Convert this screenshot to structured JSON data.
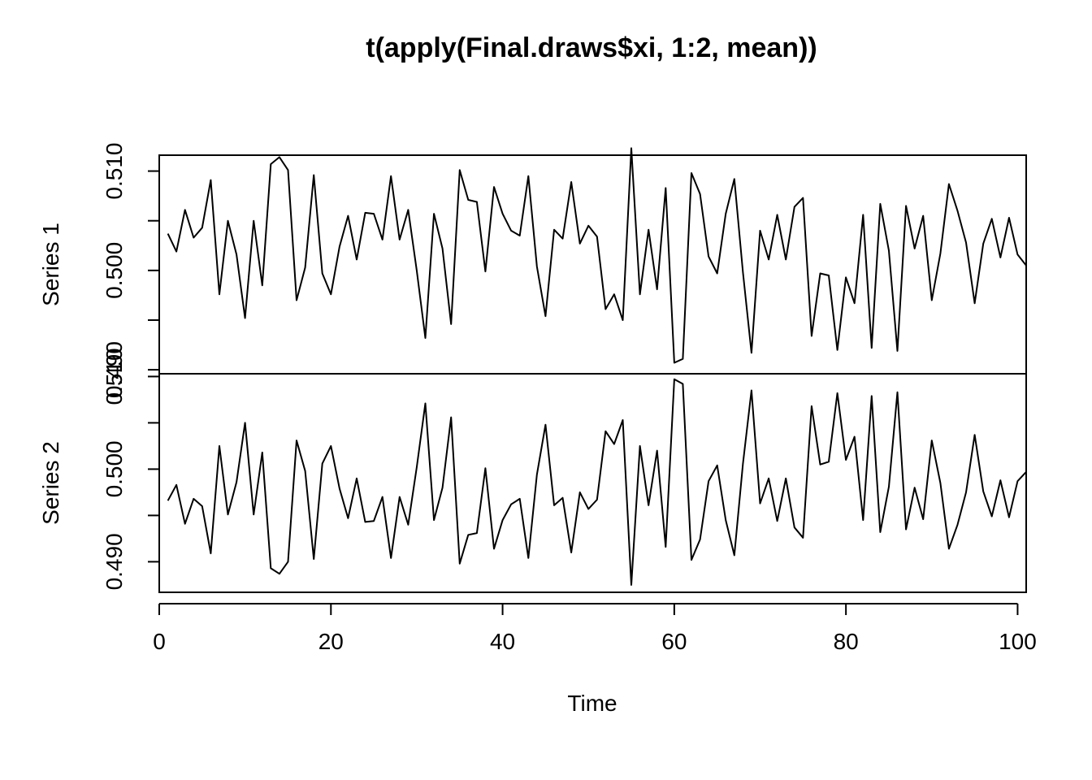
{
  "chart_data": {
    "type": "line",
    "title": "t(apply(Final.draws$xi, 1:2, mean))",
    "xlabel": "Time",
    "x_start": 1,
    "xlim": [
      0,
      101
    ],
    "x_ticks": [
      0,
      20,
      40,
      60,
      80,
      100
    ],
    "x_tick_labels": [
      "0",
      "20",
      "40",
      "60",
      "80",
      "100"
    ],
    "panels": [
      {
        "ylabel": "Series 1",
        "ylim": [
          0.4896,
          0.5116
        ],
        "y_ticks": [
          0.49,
          0.495,
          0.5,
          0.505,
          0.51
        ],
        "y_tick_labels": [
          "0.490",
          "0.500",
          "0.510"
        ],
        "y_tick_label_values": [
          0.49,
          0.5,
          0.51
        ],
        "values": [
          0.5037,
          0.5019,
          0.5061,
          0.5033,
          0.5043,
          0.5091,
          0.4976,
          0.505,
          0.5016,
          0.4952,
          0.505,
          0.4985,
          0.5107,
          0.5114,
          0.5101,
          0.497,
          0.5003,
          0.5096,
          0.4997,
          0.4976,
          0.5024,
          0.5055,
          0.5011,
          0.5058,
          0.5057,
          0.5031,
          0.5095,
          0.5031,
          0.5061,
          0.5,
          0.4932,
          0.5057,
          0.5022,
          0.4946,
          0.5101,
          0.5071,
          0.5069,
          0.4999,
          0.5084,
          0.5057,
          0.504,
          0.5035,
          0.5095,
          0.5004,
          0.4954,
          0.5041,
          0.5032,
          0.5089,
          0.5027,
          0.5045,
          0.5034,
          0.4961,
          0.4976,
          0.495,
          0.5123,
          0.4976,
          0.5041,
          0.4981,
          0.5083,
          0.4907,
          0.4911,
          0.5098,
          0.5077,
          0.5014,
          0.4997,
          0.5057,
          0.5092,
          0.4998,
          0.4917,
          0.504,
          0.5011,
          0.5056,
          0.5011,
          0.5064,
          0.5073,
          0.4934,
          0.4997,
          0.4995,
          0.492,
          0.4993,
          0.4967,
          0.5056,
          0.4922,
          0.5067,
          0.502,
          0.4919,
          0.5065,
          0.5022,
          0.5055,
          0.497,
          0.5017,
          0.5087,
          0.506,
          0.5028,
          0.4967,
          0.5027,
          0.5052,
          0.5013,
          0.5053,
          0.5016,
          0.5005
        ]
      },
      {
        "ylabel": "Series 2",
        "ylim": [
          0.4867,
          0.5103
        ],
        "y_ticks": [
          0.49,
          0.495,
          0.5,
          0.505,
          0.51
        ],
        "y_tick_labels": [
          "0.490",
          "0.500",
          "0.510"
        ],
        "y_tick_label_values": [
          0.49,
          0.5,
          0.51
        ],
        "values": [
          0.4966,
          0.4983,
          0.4941,
          0.4968,
          0.496,
          0.4909,
          0.5025,
          0.4951,
          0.4986,
          0.505,
          0.4951,
          0.5018,
          0.4893,
          0.4887,
          0.49,
          0.5031,
          0.4998,
          0.4903,
          0.5006,
          0.5025,
          0.4979,
          0.4947,
          0.499,
          0.4943,
          0.4944,
          0.497,
          0.4904,
          0.497,
          0.494,
          0.5002,
          0.5071,
          0.4945,
          0.498,
          0.5056,
          0.4898,
          0.4929,
          0.4931,
          0.5001,
          0.4914,
          0.4945,
          0.4962,
          0.4968,
          0.4904,
          0.4994,
          0.5048,
          0.4961,
          0.4969,
          0.491,
          0.4975,
          0.4957,
          0.4967,
          0.5041,
          0.5027,
          0.5053,
          0.4875,
          0.5025,
          0.4961,
          0.502,
          0.4916,
          0.5097,
          0.5092,
          0.4902,
          0.4924,
          0.4987,
          0.5004,
          0.4945,
          0.4907,
          0.5006,
          0.5085,
          0.4963,
          0.499,
          0.4944,
          0.499,
          0.4937,
          0.4926,
          0.5068,
          0.5005,
          0.5008,
          0.5082,
          0.501,
          0.5035,
          0.4945,
          0.5079,
          0.4932,
          0.4981,
          0.5083,
          0.4935,
          0.498,
          0.4946,
          0.5031,
          0.4985,
          0.4914,
          0.494,
          0.4975,
          0.5037,
          0.4976,
          0.4949,
          0.4988,
          0.4948,
          0.4987,
          0.4997
        ]
      }
    ]
  }
}
